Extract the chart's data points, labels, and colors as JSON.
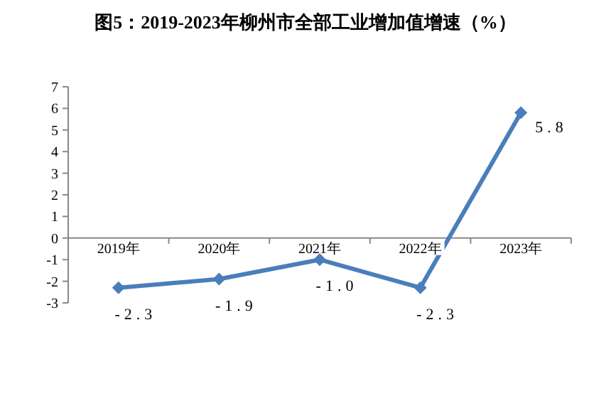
{
  "chart_data": {
    "type": "line",
    "title": "图5：2019-2023年柳州市全部工业增加值增速（%）",
    "categories": [
      "2019年",
      "2020年",
      "2021年",
      "2022年",
      "2023年"
    ],
    "series": [
      {
        "color": "#4a7ebb",
        "values": [
          -2.3,
          -1.9,
          -1.0,
          -2.3,
          5.8
        ],
        "value_labels": [
          "-2.3",
          "-1.9",
          "-1.0",
          "-2.3",
          "5.8"
        ]
      }
    ],
    "ylim": [
      -3,
      7
    ],
    "yticks": [
      -3,
      -2,
      -1,
      0,
      1,
      2,
      3,
      4,
      5,
      6,
      7
    ],
    "grid": false,
    "marker": "diamond",
    "line_style": "solid"
  }
}
